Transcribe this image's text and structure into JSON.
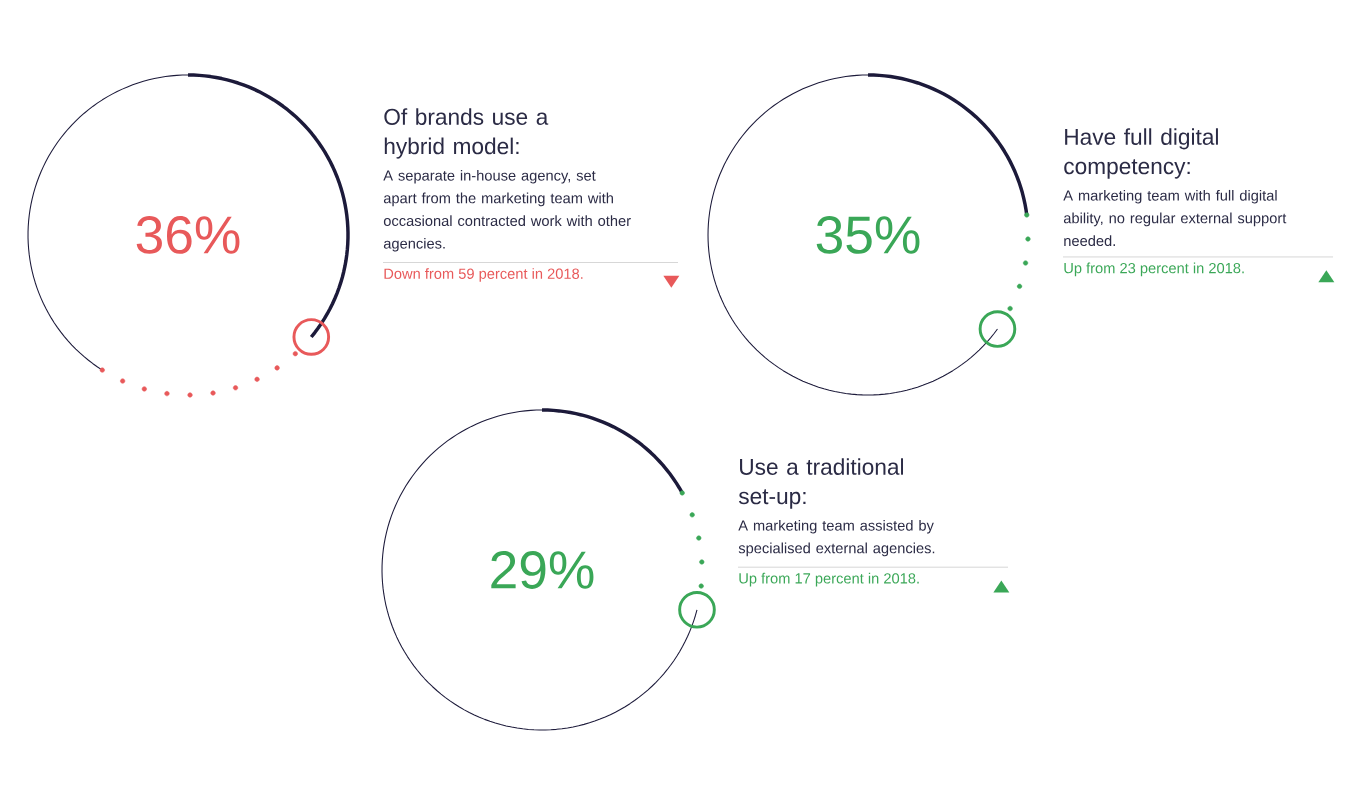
{
  "chart_data": [
    {
      "type": "other",
      "title": "Of brands use a hybrid model:",
      "subtitle": "A separate in-house agency, set apart from the marketing team with occasional contracted work with other agencies.",
      "values": [
        36,
        59
      ],
      "value_labels": [
        "36%",
        "Down from 59 percent in 2018."
      ],
      "colors": [
        "#1c1a3a",
        "#e8595a"
      ]
    },
    {
      "type": "other",
      "title": "Have full digital competency:",
      "subtitle": "A marketing team with full digital ability, no regular external support needed.",
      "values": [
        35,
        23
      ],
      "value_labels": [
        "35%",
        "Up from 23 percent in 2018."
      ],
      "colors": [
        "#1c1a3a",
        "#3aa757"
      ]
    },
    {
      "type": "other",
      "title": "Use a traditional set-up:",
      "subtitle": "A marketing team assisted by specialised external agencies.",
      "values": [
        29,
        17
      ],
      "value_labels": [
        "29%",
        "Up from 17 percent in 2018."
      ],
      "colors": [
        "#1c1a3a",
        "#3aa757"
      ]
    }
  ]
}
